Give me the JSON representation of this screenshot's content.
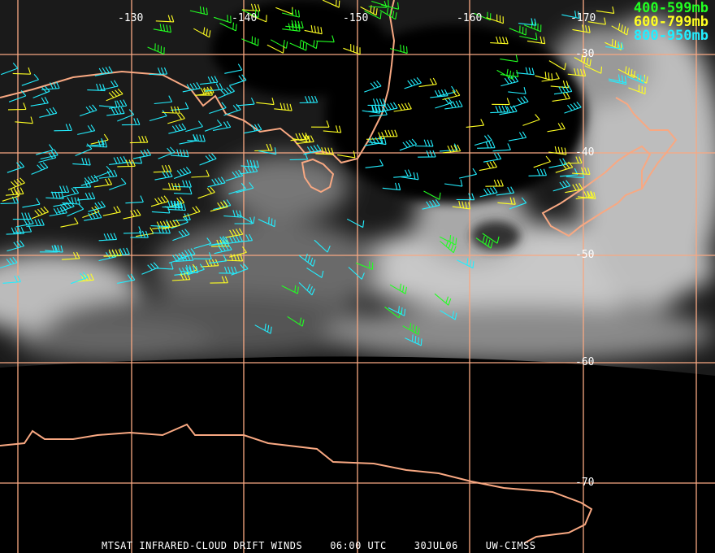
{
  "product": {
    "satellite_title": "MTSAT INFRARED-CLOUD DRIFT WINDS",
    "time": "06:00 UTC",
    "date": "30JUL06",
    "source": "UW-CIMSS"
  },
  "legend": [
    {
      "label": "400-599mb",
      "color": "#22ff22"
    },
    {
      "label": "600-799mb",
      "color": "#ffff22"
    },
    {
      "label": "800-950mb",
      "color": "#22eeff"
    }
  ],
  "longitude_labels": [
    "-130",
    "-140",
    "-150",
    "-160",
    "-170"
  ],
  "latitude_labels": [
    "-30",
    "-40",
    "-50",
    "-60",
    "-70"
  ],
  "colors": {
    "grid": "#f8a882",
    "coastline": "#f8a882",
    "background": "#000000"
  }
}
